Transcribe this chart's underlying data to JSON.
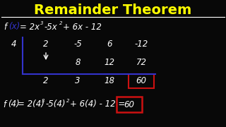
{
  "title": "Remainder Theorem",
  "title_color": "#FFFF00",
  "bg_color": "#080808",
  "white": "#FFFFFF",
  "blue": "#3333CC",
  "red_box_color": "#CC1111",
  "divisor": "4",
  "coeffs": [
    "2",
    "-5",
    "6",
    "-12"
  ],
  "multiply": [
    "8",
    "12",
    "72"
  ],
  "result": [
    "2",
    "3",
    "18",
    "60"
  ],
  "figsize": [
    3.2,
    1.8
  ],
  "dpi": 100
}
